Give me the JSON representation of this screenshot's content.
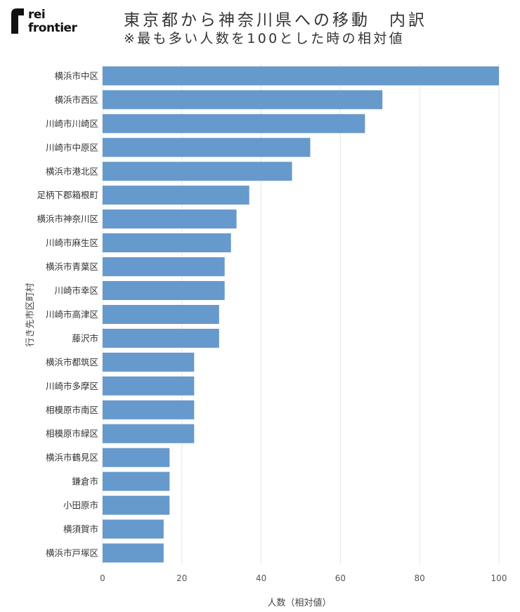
{
  "brand": {
    "line1": "rei",
    "line2": "frontier",
    "icon": "rei-frontier-logo"
  },
  "header": {
    "title": "東京都から神奈川県への移動　内訳",
    "subtitle": "※最も多い人数を100とした時の相対値"
  },
  "colors": {
    "bar": "#6699cc",
    "grid": "#e6e6e6",
    "text": "#333333"
  },
  "chart_data": {
    "type": "bar",
    "orientation": "horizontal",
    "xlabel": "人数（相対値）",
    "ylabel": "行き先市区町村",
    "xlim": [
      0,
      100
    ],
    "xticks": [
      0,
      20,
      40,
      60,
      80,
      100
    ],
    "grid": true,
    "categories": [
      "横浜市中区",
      "横浜市西区",
      "川崎市川崎区",
      "川崎市中原区",
      "横浜市港北区",
      "足柄下郡箱根町",
      "横浜市神奈川区",
      "川崎市麻生区",
      "横浜市青葉区",
      "川崎市幸区",
      "川崎市高津区",
      "藤沢市",
      "横浜市都筑区",
      "川崎市多摩区",
      "相模原市南区",
      "相模原市緑区",
      "横浜市鶴見区",
      "鎌倉市",
      "小田原市",
      "横須賀市",
      "横浜市戸塚区"
    ],
    "values": [
      100,
      70.6,
      66.2,
      52.4,
      47.8,
      37.0,
      33.8,
      32.4,
      30.8,
      30.8,
      29.4,
      29.4,
      23.1,
      23.1,
      23.1,
      23.1,
      16.9,
      16.9,
      16.9,
      15.4,
      15.4
    ]
  }
}
